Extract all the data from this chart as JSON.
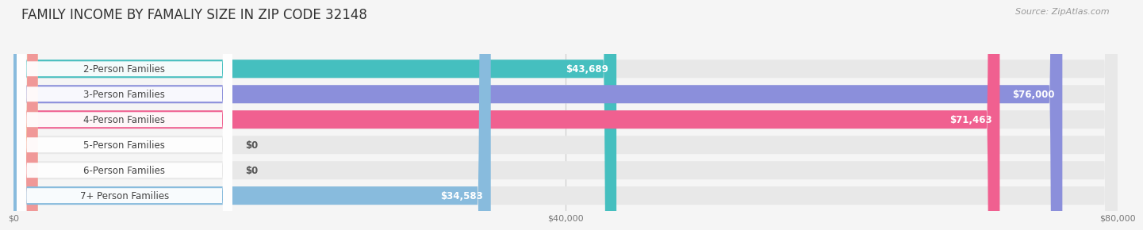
{
  "title": "FAMILY INCOME BY FAMALIY SIZE IN ZIP CODE 32148",
  "source": "Source: ZipAtlas.com",
  "categories": [
    "2-Person Families",
    "3-Person Families",
    "4-Person Families",
    "5-Person Families",
    "6-Person Families",
    "7+ Person Families"
  ],
  "values": [
    43689,
    76000,
    71463,
    0,
    0,
    34583
  ],
  "bar_colors": [
    "#45bfbf",
    "#8b8fdb",
    "#f06090",
    "#f5c898",
    "#f09898",
    "#88bbdd"
  ],
  "value_labels": [
    "$43,689",
    "$76,000",
    "$71,463",
    "$0",
    "$0",
    "$34,583"
  ],
  "x_ticks": [
    0,
    40000,
    80000
  ],
  "x_tick_labels": [
    "$0",
    "$40,000",
    "$80,000"
  ],
  "xlim_max": 80000,
  "background_color": "#f5f5f5",
  "bar_bg_color": "#e8e8e8",
  "title_fontsize": 12,
  "label_fontsize": 8.5,
  "value_fontsize": 8.5,
  "source_fontsize": 8
}
